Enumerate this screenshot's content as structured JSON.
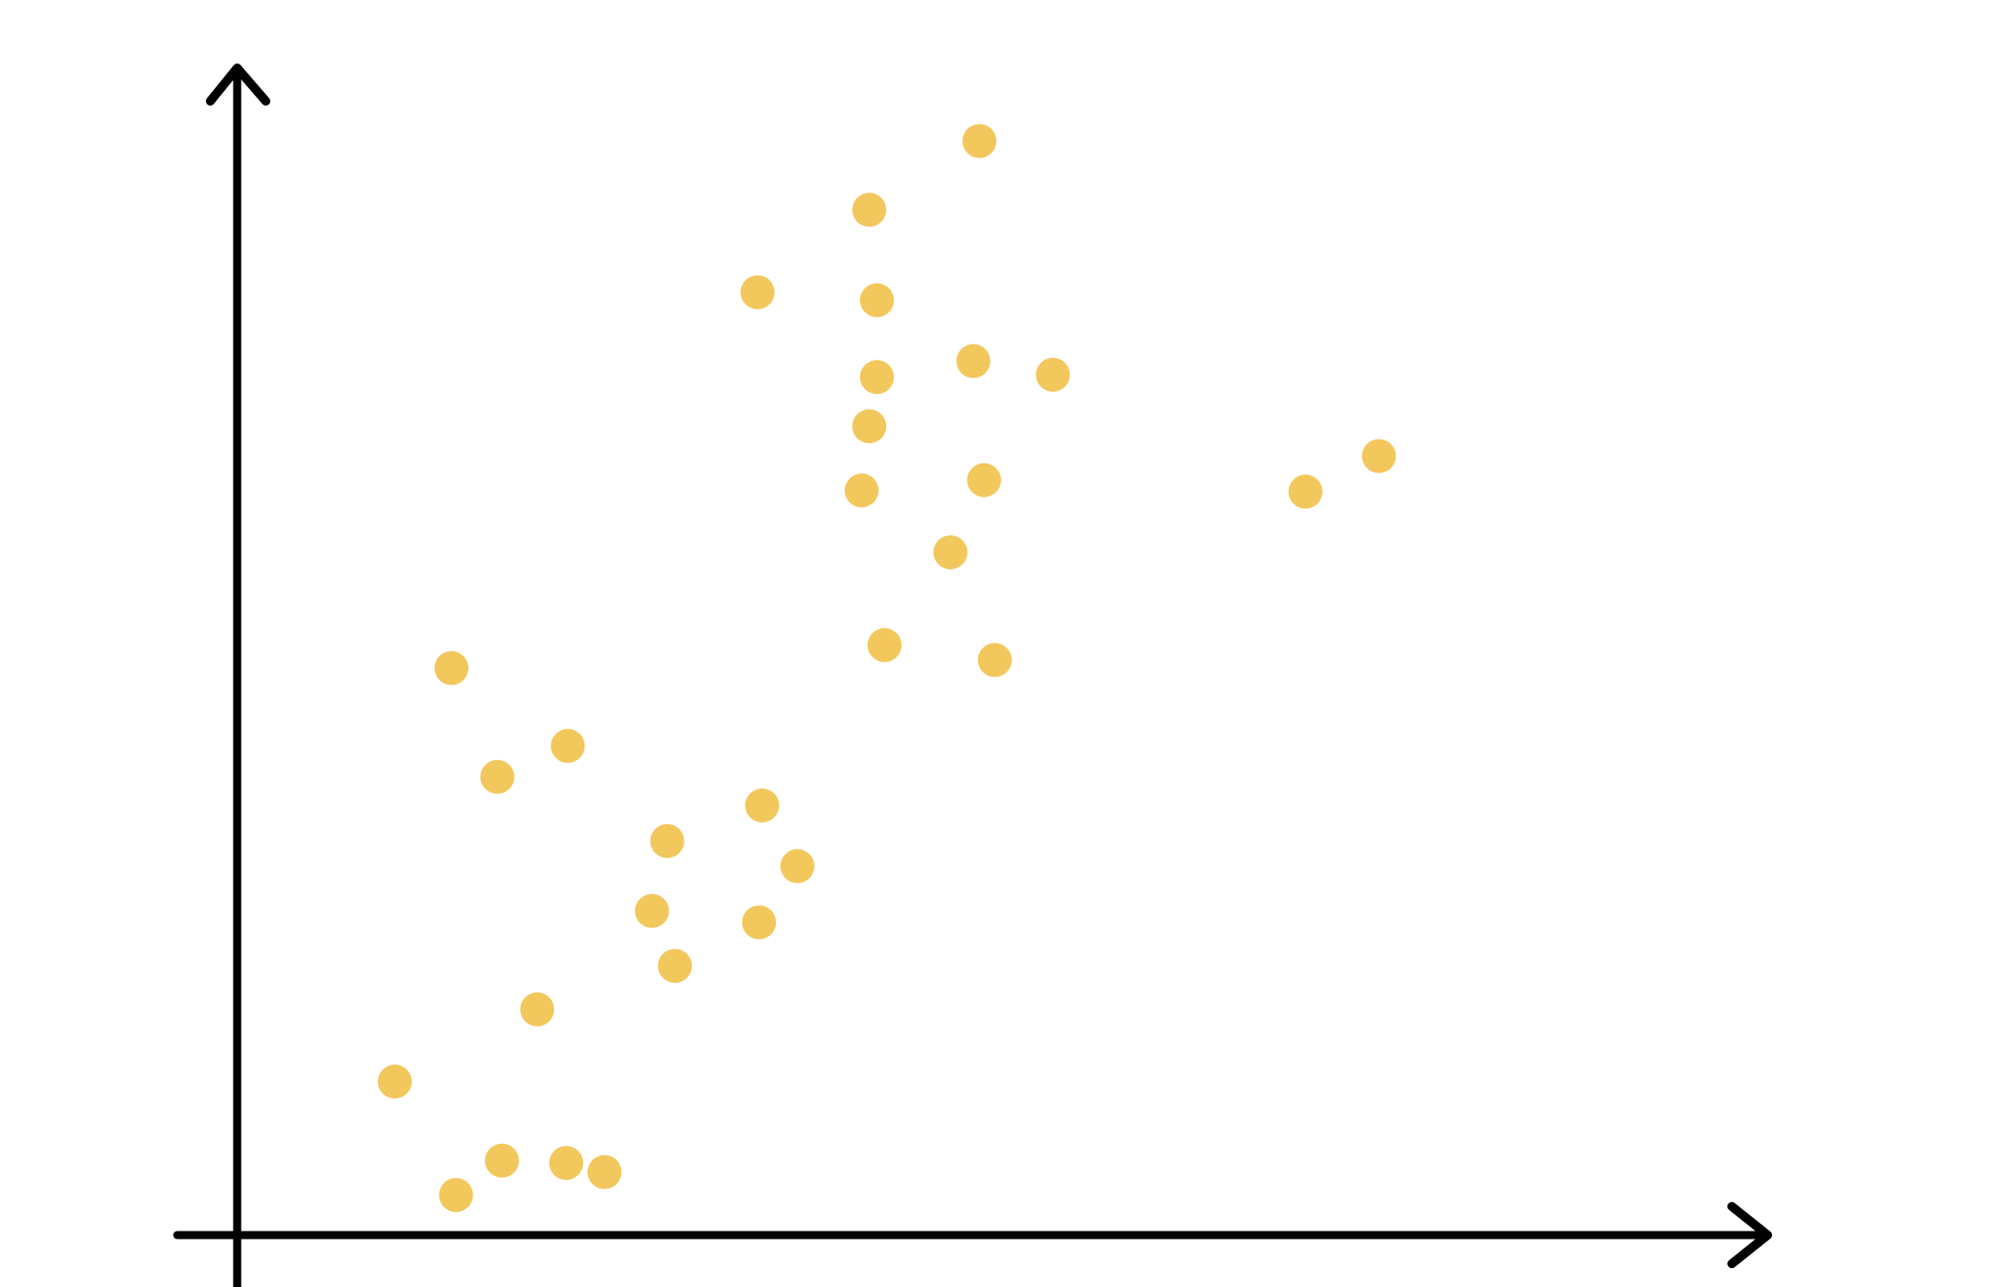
{
  "chart_data": {
    "type": "scatter",
    "title": "",
    "xlabel": "",
    "ylabel": "",
    "xlim": [
      0,
      100
    ],
    "ylim": [
      0,
      100
    ],
    "grid": false,
    "legend": "none",
    "series": [
      {
        "color": "#F2C75C",
        "points": [
          {
            "x": 14.3,
            "y": 3.5
          },
          {
            "x": 17.3,
            "y": 6.5
          },
          {
            "x": 21.5,
            "y": 6.3
          },
          {
            "x": 10.3,
            "y": 13.4
          },
          {
            "x": 24.0,
            "y": 5.5
          },
          {
            "x": 19.6,
            "y": 19.7
          },
          {
            "x": 28.6,
            "y": 23.5
          },
          {
            "x": 27.1,
            "y": 28.3
          },
          {
            "x": 34.1,
            "y": 27.3
          },
          {
            "x": 28.1,
            "y": 34.4
          },
          {
            "x": 36.6,
            "y": 32.2
          },
          {
            "x": 34.3,
            "y": 37.5
          },
          {
            "x": 17.0,
            "y": 40.0
          },
          {
            "x": 21.6,
            "y": 42.7
          },
          {
            "x": 14.0,
            "y": 49.5
          },
          {
            "x": 42.3,
            "y": 51.5
          },
          {
            "x": 46.6,
            "y": 59.6
          },
          {
            "x": 49.5,
            "y": 50.2
          },
          {
            "x": 48.8,
            "y": 65.9
          },
          {
            "x": 40.8,
            "y": 65.0
          },
          {
            "x": 41.3,
            "y": 70.6
          },
          {
            "x": 41.8,
            "y": 74.9
          },
          {
            "x": 48.1,
            "y": 76.3
          },
          {
            "x": 53.3,
            "y": 75.1
          },
          {
            "x": 41.8,
            "y": 81.6
          },
          {
            "x": 34.0,
            "y": 82.3
          },
          {
            "x": 41.3,
            "y": 89.5
          },
          {
            "x": 48.5,
            "y": 95.5
          },
          {
            "x": 69.8,
            "y": 64.9
          },
          {
            "x": 74.6,
            "y": 68.0
          }
        ]
      }
    ]
  }
}
